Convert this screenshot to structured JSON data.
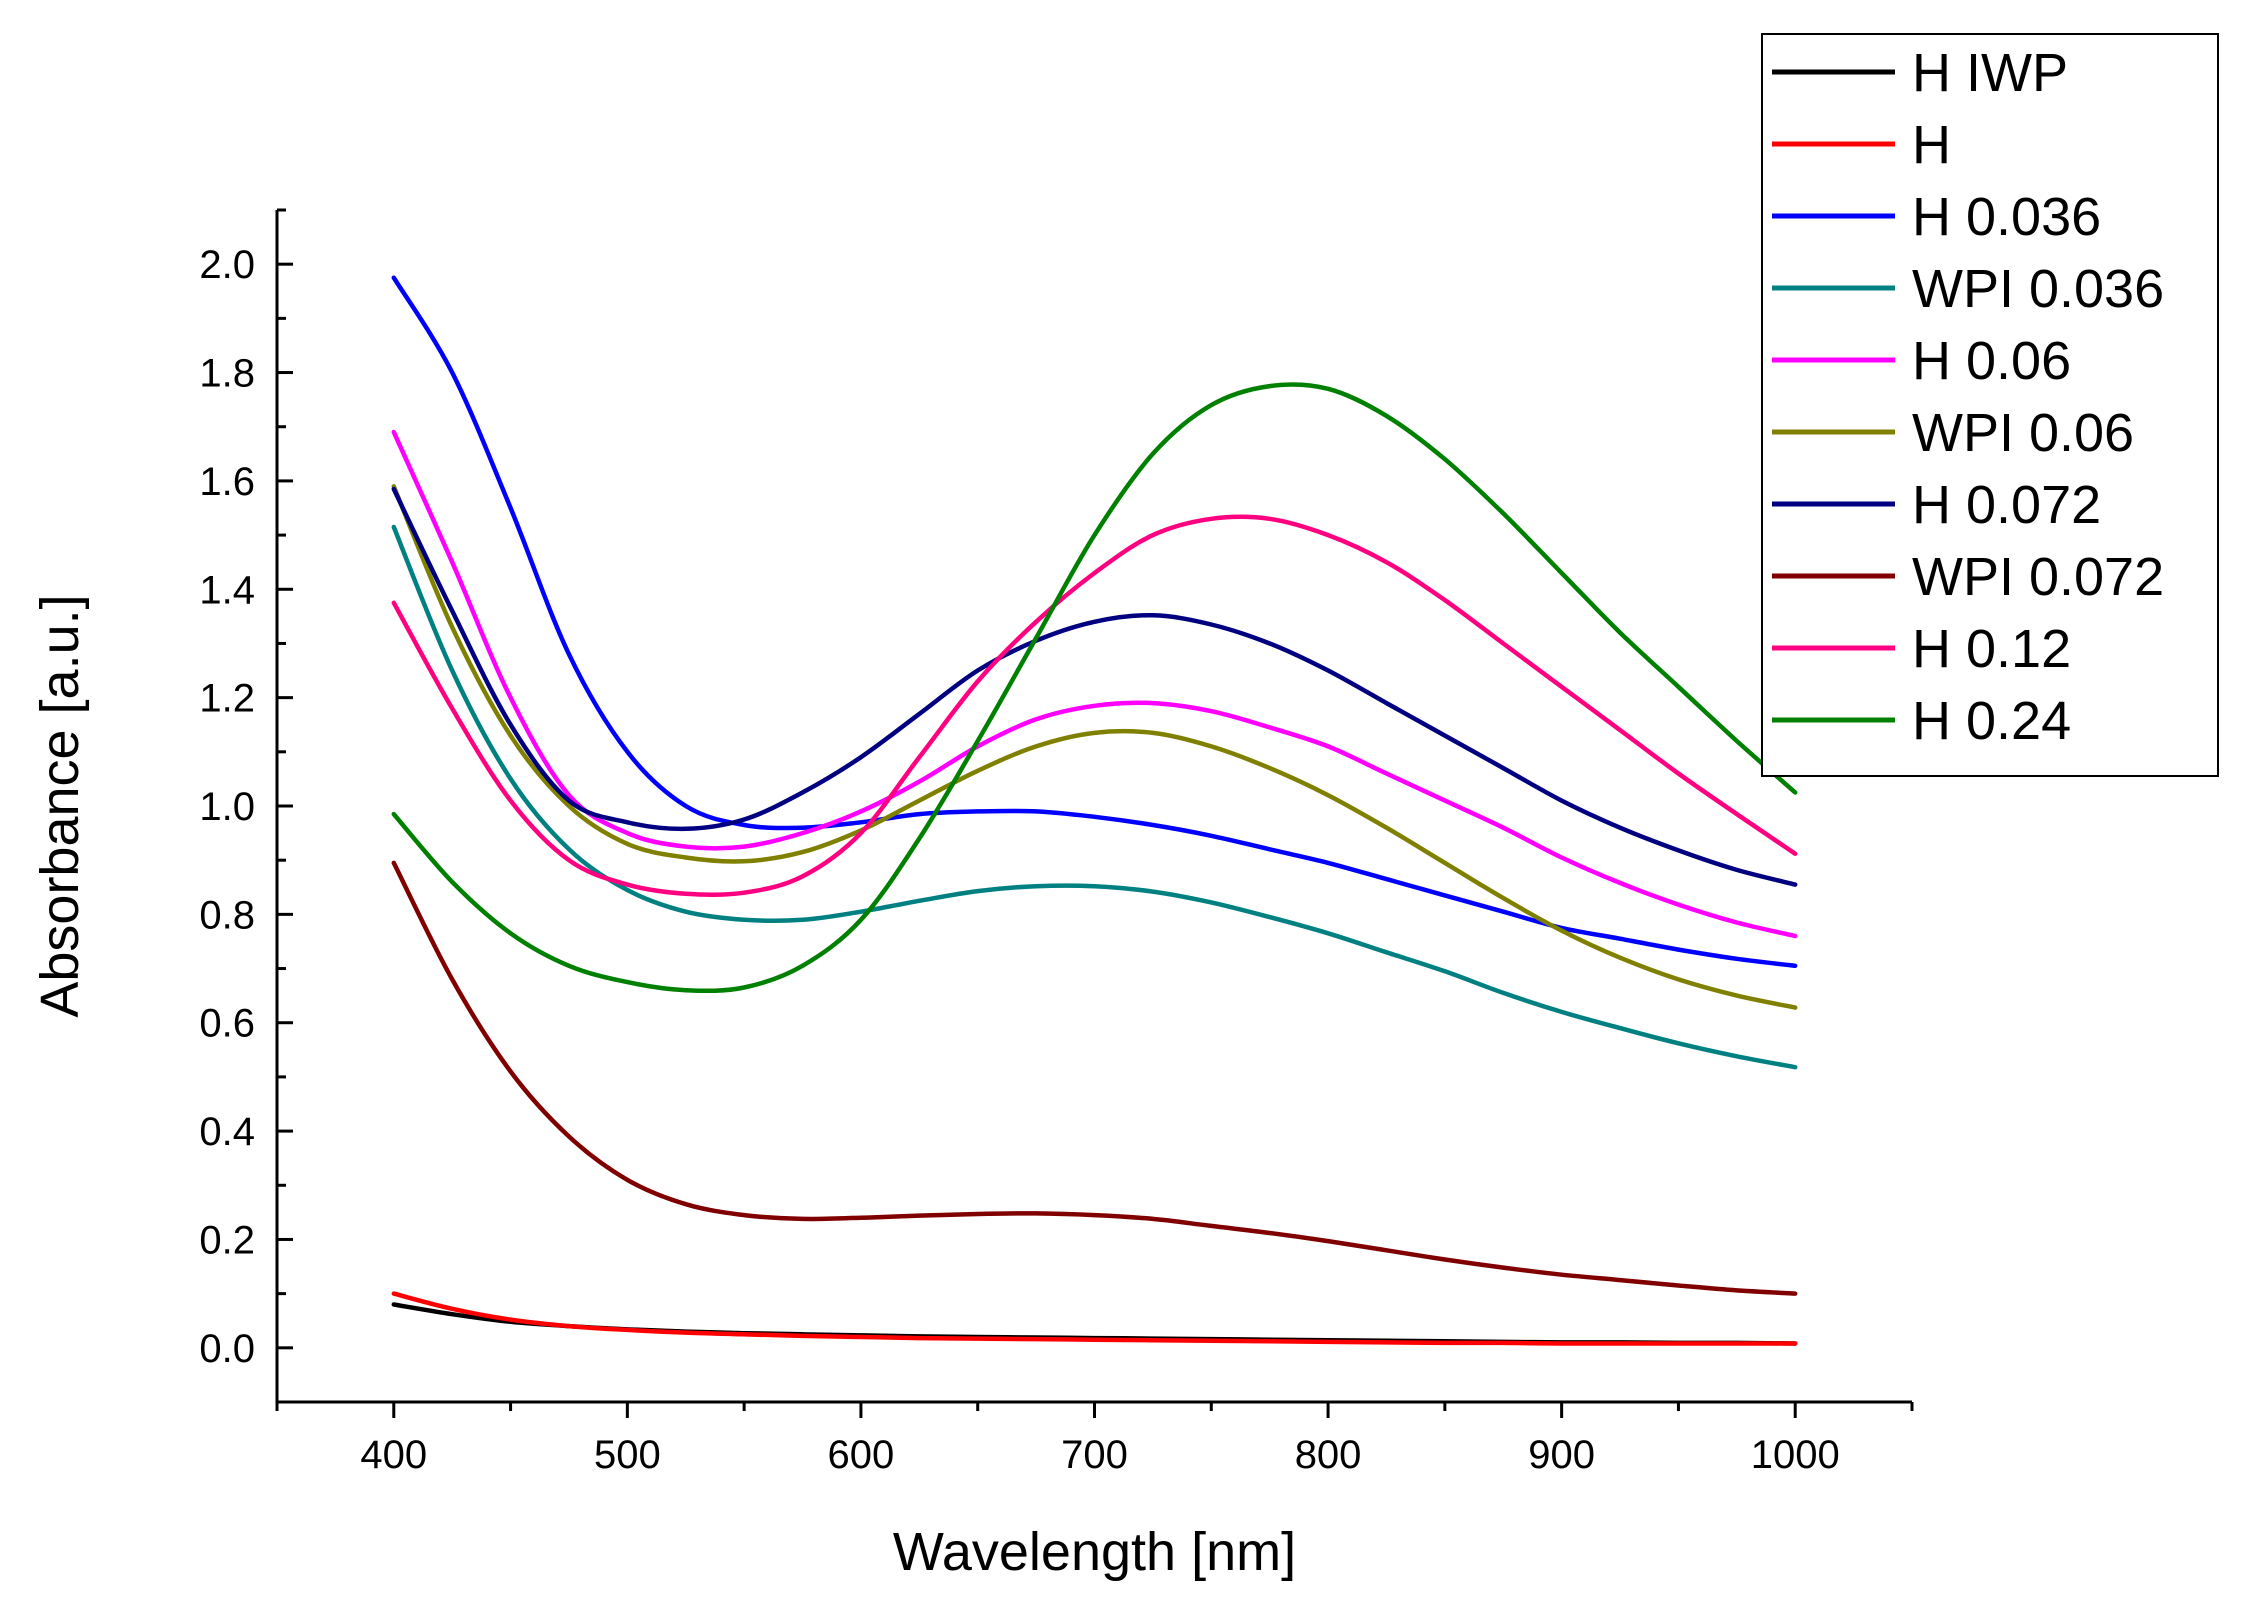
{
  "chart_data": {
    "type": "line",
    "title": "",
    "xlabel": "Wavelength [nm]",
    "ylabel": "Absorbance [a.u.]",
    "xlim": [
      350,
      1050
    ],
    "ylim": [
      -0.1,
      2.1
    ],
    "xticks": [
      400,
      500,
      600,
      700,
      800,
      900,
      1000
    ],
    "xtick_labels": [
      "400",
      "500",
      "600",
      "700",
      "800",
      "900",
      "1000"
    ],
    "yticks": [
      0.0,
      0.2,
      0.4,
      0.6,
      0.8,
      1.0,
      1.2,
      1.4,
      1.6,
      1.8,
      2.0
    ],
    "ytick_labels": [
      "0.0",
      "0.2",
      "0.4",
      "0.6",
      "0.8",
      "1.0",
      "1.2",
      "1.4",
      "1.6",
      "1.8",
      "2.0"
    ],
    "grid": false,
    "legend_position": "top-right",
    "x": [
      400,
      425,
      450,
      475,
      500,
      525,
      550,
      575,
      600,
      625,
      650,
      675,
      700,
      725,
      750,
      775,
      800,
      825,
      850,
      875,
      900,
      925,
      950,
      975,
      1000
    ],
    "series": [
      {
        "name": "H IWP",
        "color": "#000000",
        "values": [
          0.08,
          0.062,
          0.048,
          0.04,
          0.034,
          0.03,
          0.027,
          0.025,
          0.023,
          0.021,
          0.02,
          0.019,
          0.018,
          0.017,
          0.016,
          0.015,
          0.014,
          0.013,
          0.012,
          0.011,
          0.01,
          0.01,
          0.009,
          0.009,
          0.008
        ]
      },
      {
        "name": "H",
        "color": "#ff0000",
        "values": [
          0.1,
          0.072,
          0.052,
          0.04,
          0.033,
          0.028,
          0.025,
          0.022,
          0.02,
          0.018,
          0.017,
          0.016,
          0.015,
          0.014,
          0.013,
          0.012,
          0.011,
          0.01,
          0.009,
          0.009,
          0.008,
          0.008,
          0.008,
          0.008,
          0.008
        ]
      },
      {
        "name": "H 0.036",
        "color": "#0000ff",
        "values": [
          1.975,
          1.8,
          1.55,
          1.28,
          1.1,
          1.0,
          0.965,
          0.96,
          0.97,
          0.985,
          0.99,
          0.99,
          0.98,
          0.965,
          0.945,
          0.92,
          0.895,
          0.865,
          0.835,
          0.805,
          0.775,
          0.755,
          0.735,
          0.718,
          0.705
        ]
      },
      {
        "name": "WPI 0.036",
        "color": "#008080",
        "values": [
          1.515,
          1.25,
          1.05,
          0.92,
          0.845,
          0.805,
          0.79,
          0.79,
          0.805,
          0.825,
          0.843,
          0.852,
          0.852,
          0.842,
          0.822,
          0.795,
          0.765,
          0.73,
          0.695,
          0.655,
          0.62,
          0.59,
          0.562,
          0.538,
          0.518
        ]
      },
      {
        "name": "H 0.06",
        "color": "#ff00ff",
        "values": [
          1.69,
          1.45,
          1.2,
          1.02,
          0.95,
          0.925,
          0.925,
          0.95,
          0.99,
          1.045,
          1.11,
          1.16,
          1.185,
          1.19,
          1.175,
          1.145,
          1.11,
          1.06,
          1.01,
          0.96,
          0.905,
          0.858,
          0.818,
          0.785,
          0.76
        ]
      },
      {
        "name": "WPI 0.06",
        "color": "#808000",
        "values": [
          1.59,
          1.33,
          1.13,
          1.0,
          0.93,
          0.905,
          0.898,
          0.915,
          0.955,
          1.01,
          1.065,
          1.11,
          1.135,
          1.135,
          1.11,
          1.07,
          1.02,
          0.96,
          0.895,
          0.83,
          0.77,
          0.72,
          0.68,
          0.65,
          0.628
        ]
      },
      {
        "name": "H 0.072",
        "color": "#000080",
        "values": [
          1.585,
          1.36,
          1.15,
          1.01,
          0.97,
          0.958,
          0.975,
          1.025,
          1.09,
          1.17,
          1.25,
          1.305,
          1.34,
          1.352,
          1.335,
          1.3,
          1.25,
          1.19,
          1.13,
          1.07,
          1.01,
          0.96,
          0.918,
          0.882,
          0.855
        ]
      },
      {
        "name": "WPI 0.072",
        "color": "#800000",
        "values": [
          0.895,
          0.68,
          0.51,
          0.39,
          0.31,
          0.265,
          0.245,
          0.238,
          0.24,
          0.244,
          0.247,
          0.248,
          0.245,
          0.238,
          0.225,
          0.212,
          0.197,
          0.18,
          0.163,
          0.148,
          0.135,
          0.125,
          0.115,
          0.106,
          0.1
        ]
      },
      {
        "name": "H 0.12",
        "color": "#ff0080",
        "values": [
          1.375,
          1.18,
          1.01,
          0.9,
          0.855,
          0.838,
          0.84,
          0.87,
          0.95,
          1.09,
          1.23,
          1.34,
          1.43,
          1.5,
          1.53,
          1.53,
          1.5,
          1.45,
          1.38,
          1.3,
          1.22,
          1.14,
          1.06,
          0.985,
          0.912
        ]
      },
      {
        "name": "H 0.24",
        "color": "#008000",
        "values": [
          0.985,
          0.86,
          0.765,
          0.705,
          0.675,
          0.66,
          0.665,
          0.705,
          0.79,
          0.94,
          1.12,
          1.31,
          1.5,
          1.65,
          1.74,
          1.775,
          1.77,
          1.72,
          1.64,
          1.54,
          1.43,
          1.32,
          1.22,
          1.12,
          1.025
        ]
      }
    ]
  }
}
